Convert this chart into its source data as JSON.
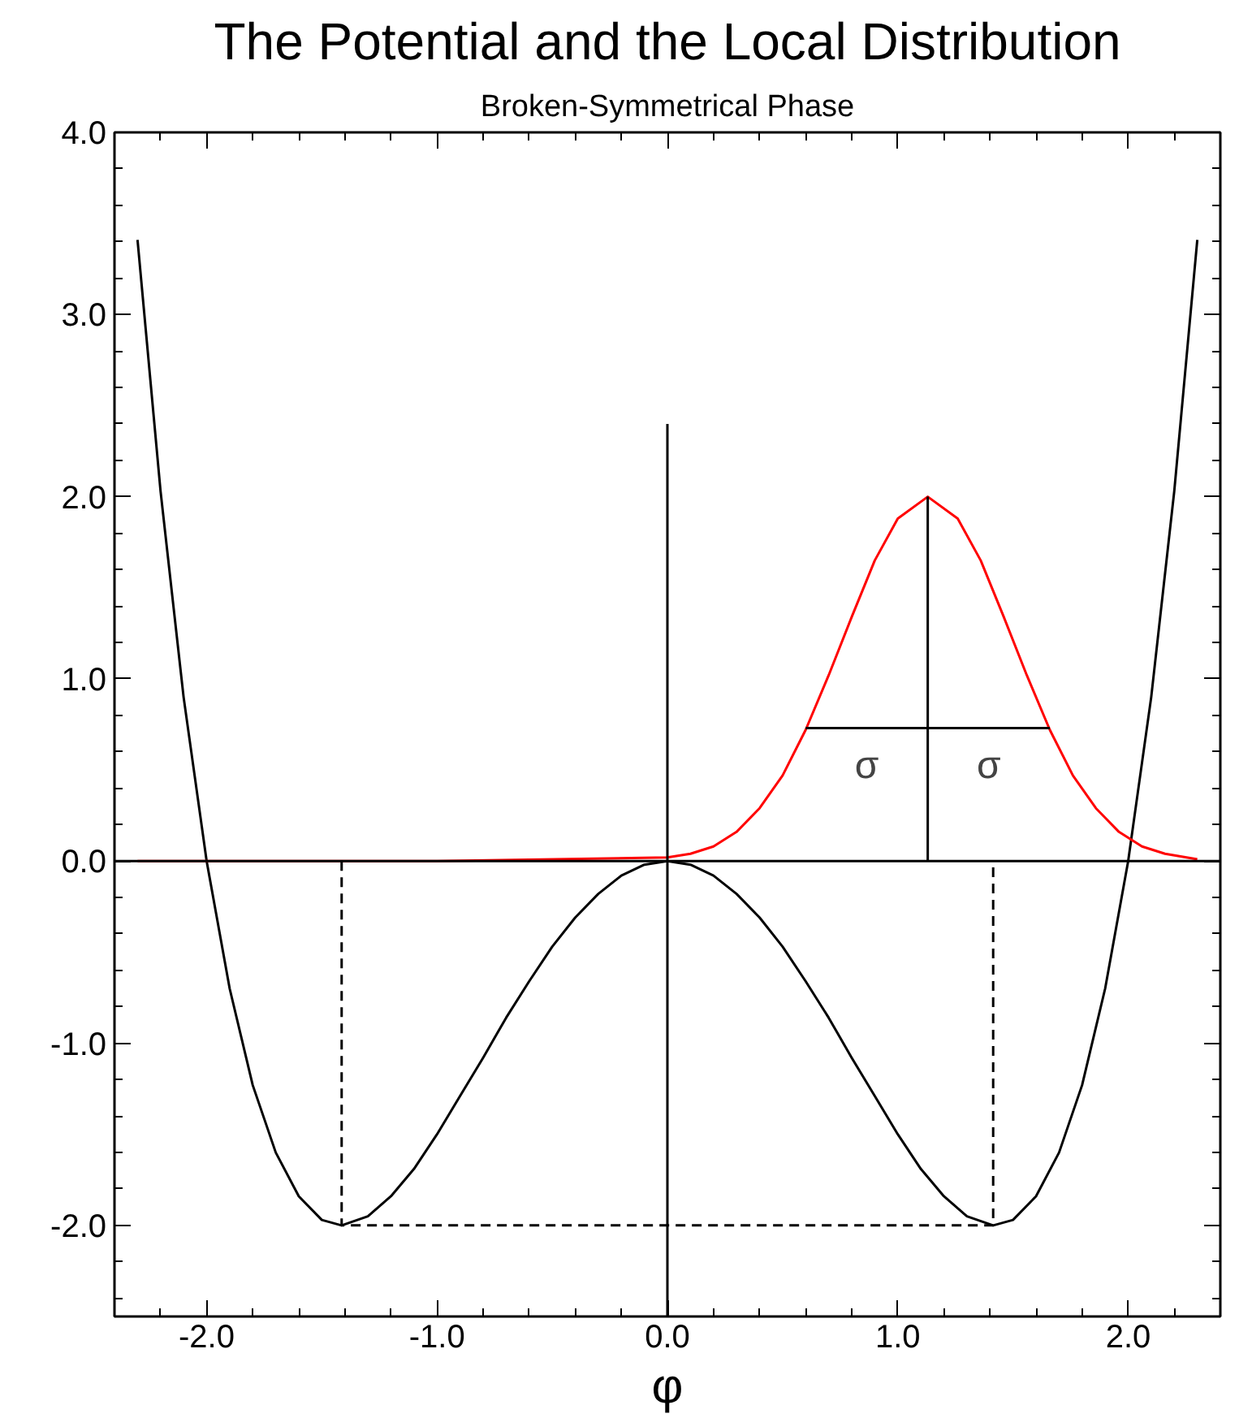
{
  "chart_data": {
    "type": "line",
    "title": "The Potential and the Local Distribution",
    "subtitle": "Broken-Symmetrical Phase",
    "xlabel": "φ",
    "xlim": [
      -2.4,
      2.4
    ],
    "ylim": [
      -2.5,
      4.0
    ],
    "xticks": [
      {
        "value": -2,
        "label": "-2.0"
      },
      {
        "value": -1,
        "label": "-1.0"
      },
      {
        "value": 0,
        "label": "0.0"
      },
      {
        "value": 1,
        "label": "1.0"
      },
      {
        "value": 2,
        "label": "2.0"
      }
    ],
    "yticks": [
      {
        "value": -2,
        "label": "-2.0"
      },
      {
        "value": -1,
        "label": "-1.0"
      },
      {
        "value": 0,
        "label": "0.0"
      },
      {
        "value": 1,
        "label": "1.0"
      },
      {
        "value": 2,
        "label": "2.0"
      },
      {
        "value": 3,
        "label": "3.0"
      },
      {
        "value": 4,
        "label": "4.0"
      }
    ],
    "grid": false,
    "marker": "none",
    "ref_lines": [
      {
        "axis": "y",
        "value": 0,
        "color": "#000000",
        "line_style": "solid"
      }
    ],
    "series": [
      {
        "color": "#000000",
        "line_style": "solid",
        "x": [
          -2.3,
          -2.2,
          -2.1,
          -2.0,
          -1.9,
          -1.8,
          -1.7,
          -1.6,
          -1.5,
          -1.414,
          -1.3,
          -1.2,
          -1.1,
          -1.0,
          -0.9,
          -0.8,
          -0.7,
          -0.6,
          -0.5,
          -0.4,
          -0.3,
          -0.2,
          -0.1,
          0.0,
          0.1,
          0.2,
          0.3,
          0.4,
          0.5,
          0.6,
          0.7,
          0.8,
          0.9,
          1.0,
          1.1,
          1.2,
          1.3,
          1.414,
          1.5,
          1.6,
          1.7,
          1.8,
          1.9,
          2.0,
          2.1,
          2.2,
          2.3
        ],
        "values": [
          3.41,
          2.03,
          0.9,
          0.0,
          -0.7,
          -1.23,
          -1.6,
          -1.84,
          -1.97,
          -2.0,
          -1.95,
          -1.84,
          -1.69,
          -1.5,
          -1.29,
          -1.08,
          -0.86,
          -0.66,
          -0.47,
          -0.31,
          -0.18,
          -0.08,
          -0.02,
          0.0,
          -0.02,
          -0.08,
          -0.18,
          -0.31,
          -0.47,
          -0.66,
          -0.86,
          -1.08,
          -1.29,
          -1.5,
          -1.69,
          -1.84,
          -1.95,
          -2.0,
          -1.97,
          -1.84,
          -1.6,
          -1.23,
          -0.7,
          0.0,
          0.9,
          2.03,
          3.41
        ]
      },
      {
        "color": "#ff0000",
        "line_style": "solid",
        "x": [
          -2.3,
          -1.0,
          0.0,
          0.1,
          0.2,
          0.3,
          0.4,
          0.5,
          0.6,
          0.7,
          0.8,
          0.9,
          1.0,
          1.13,
          1.26,
          1.36,
          1.46,
          1.56,
          1.66,
          1.76,
          1.86,
          1.96,
          2.06,
          2.16,
          2.3
        ],
        "values": [
          0.0,
          0.0,
          0.02,
          0.04,
          0.08,
          0.16,
          0.29,
          0.47,
          0.72,
          1.02,
          1.34,
          1.65,
          1.88,
          2.0,
          1.88,
          1.65,
          1.34,
          1.02,
          0.72,
          0.47,
          0.29,
          0.16,
          0.08,
          0.04,
          0.01
        ]
      },
      {
        "color": "#000000",
        "line_style": "solid",
        "x": [
          0.0,
          0.0
        ],
        "values": [
          -2.5,
          2.4
        ]
      },
      {
        "color": "#000000",
        "line_style": "solid",
        "x": [
          1.13,
          1.13
        ],
        "values": [
          0.0,
          2.0
        ]
      },
      {
        "color": "#000000",
        "line_style": "dashed",
        "x": [
          -1.414,
          -1.414,
          1.414,
          1.414
        ],
        "values": [
          0.0,
          -2.0,
          -2.0,
          0.0
        ]
      },
      {
        "color": "#000000",
        "line_style": "solid",
        "x": [
          0.6,
          0.865,
          1.13,
          1.395,
          1.66
        ],
        "values": [
          0.73,
          0.73,
          0.73,
          0.73,
          0.73
        ]
      }
    ],
    "annotations": [
      {
        "text": "σ",
        "x": 0.865,
        "y": 0.73
      },
      {
        "text": "σ",
        "x": 1.395,
        "y": 0.73
      }
    ]
  }
}
